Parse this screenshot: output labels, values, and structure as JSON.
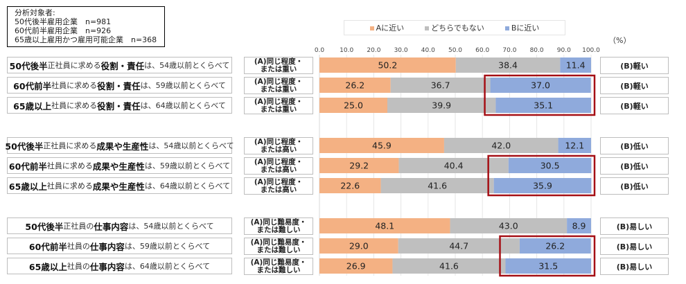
{
  "sample_box": {
    "title": "分析対象者:",
    "lines": [
      "50代後半雇用企業　n=981",
      "60代前半雇用企業　n=926",
      "65歳以上雇用かつ雇用可能企業　n=368"
    ]
  },
  "chart_data": {
    "type": "bar",
    "orientation": "horizontal",
    "stacked": true,
    "unit": "（%）",
    "xlim": [
      0,
      100
    ],
    "x_ticks": [
      "0.0",
      "10.0",
      "20.0",
      "30.0",
      "40.0",
      "50.0",
      "60.0",
      "70.0",
      "80.0",
      "90.0",
      "100.0"
    ],
    "grid": true,
    "legend_placement": "top",
    "series": [
      {
        "name": "Aに近い",
        "color": "#F4B183"
      },
      {
        "name": "どちらでもない",
        "color": "#BFBFBF"
      },
      {
        "name": "Bに近い",
        "color": "#8FAADC"
      }
    ],
    "highlight_color": "#A50F15",
    "groups": [
      {
        "a_label": [
          "(A)同じ程度・",
          "または重い"
        ],
        "b_label": "(B)軽い",
        "rows": [
          {
            "parts": [
              "50代後半",
              "正社員に求める",
              "役割・責任",
              "は、54歳以前とくらべて"
            ],
            "values": [
              50.2,
              38.4,
              11.4
            ]
          },
          {
            "parts": [
              "60代前半",
              "社員に求める",
              "役割・責任",
              "は、59歳以前とくらべて"
            ],
            "values": [
              26.2,
              36.7,
              37.0
            ]
          },
          {
            "parts": [
              "65歳以上",
              "社員に求める",
              "役割・責任",
              "は、64歳以前とくらべて"
            ],
            "values": [
              25.0,
              39.9,
              35.1
            ]
          }
        ]
      },
      {
        "a_label": [
          "(A)同じ程度・",
          "または高い"
        ],
        "b_label": "(B)低い",
        "rows": [
          {
            "parts": [
              "50代後半",
              "正社員に求める",
              "成果や生産性",
              "は、54歳以前とくらべて"
            ],
            "values": [
              45.9,
              42.0,
              12.1
            ]
          },
          {
            "parts": [
              "60代前半",
              "社員に求める",
              "成果や生産性",
              "は、59歳以前とくらべて"
            ],
            "values": [
              29.2,
              40.4,
              30.5
            ]
          },
          {
            "parts": [
              "65歳以上",
              "社員に求める",
              "成果や生産性",
              "は、64歳以前とくらべて"
            ],
            "values": [
              22.6,
              41.6,
              35.9
            ]
          }
        ]
      },
      {
        "a_label": [
          "(A)同じ難易度・",
          "または難しい"
        ],
        "b_label": "(B)易しい",
        "rows": [
          {
            "parts": [
              "50代後半",
              "正社員の",
              "仕事内容",
              "は、54歳以前とくらべて"
            ],
            "values": [
              48.1,
              43.0,
              8.9
            ]
          },
          {
            "parts": [
              "60代前半",
              "社員の",
              "仕事内容",
              "は、59歳以前とくらべて"
            ],
            "values": [
              29.0,
              44.7,
              26.2
            ]
          },
          {
            "parts": [
              "65歳以上",
              "社員の",
              "仕事内容",
              "は、64歳以前とくらべて"
            ],
            "values": [
              26.9,
              41.6,
              31.5
            ]
          }
        ]
      }
    ]
  }
}
